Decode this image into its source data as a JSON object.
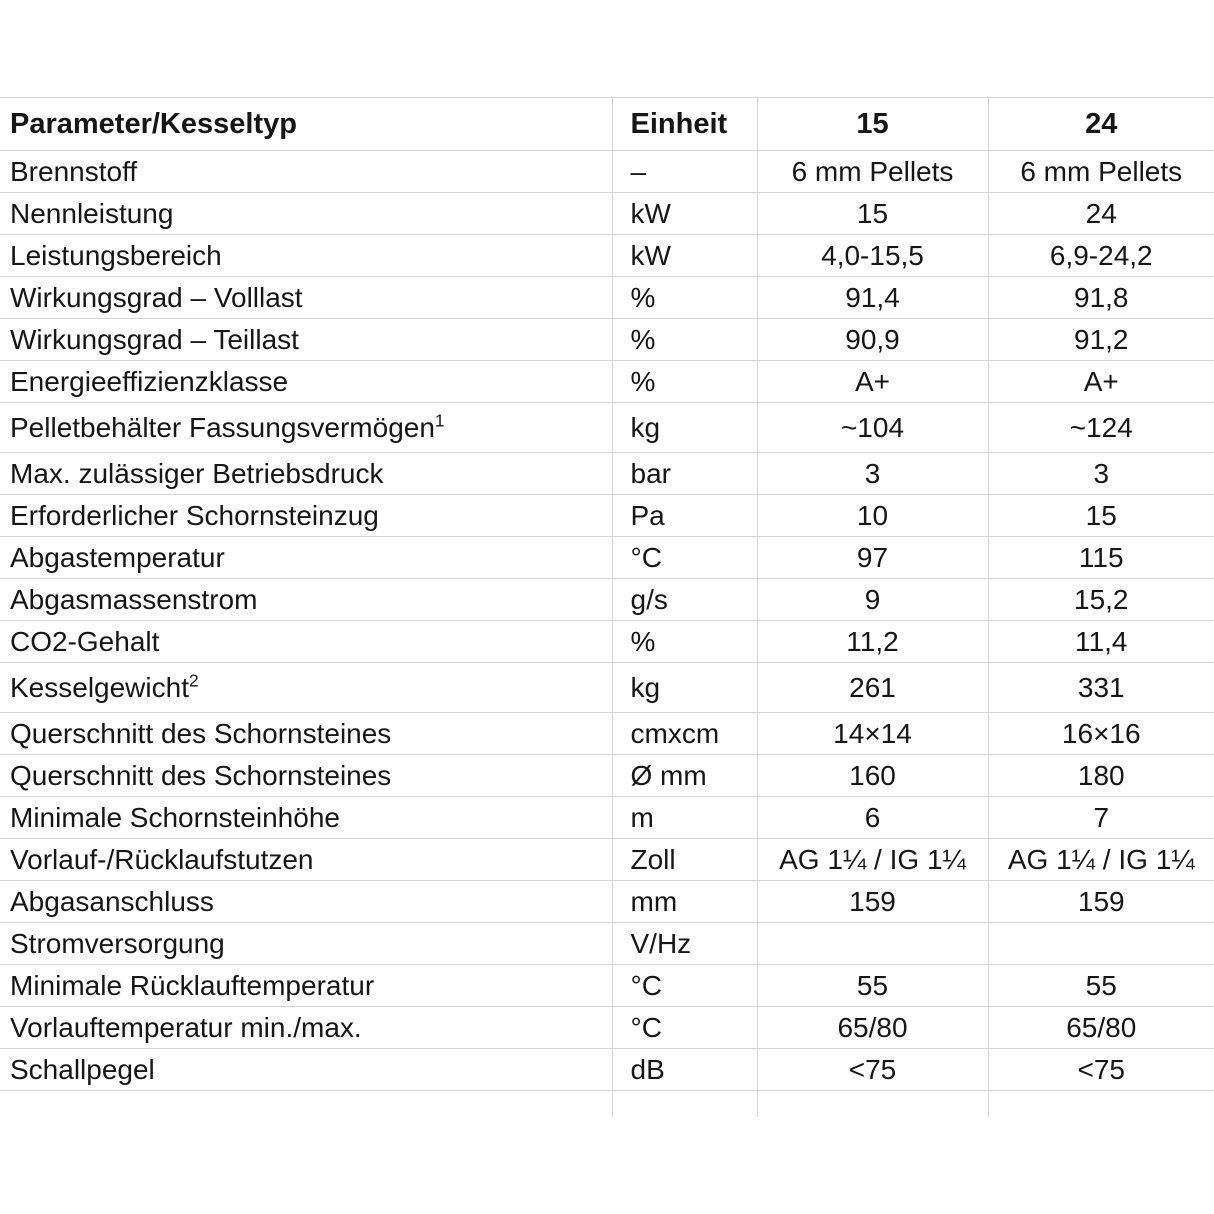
{
  "colors": {
    "background": "#ffffff",
    "grid_line": "#d4d4d4",
    "text": "#161616"
  },
  "table": {
    "header": {
      "parameter": "Parameter/Kesseltyp",
      "unit": "Einheit",
      "model_15": "15",
      "model_24": "24"
    },
    "rows": [
      {
        "parameter": "Brennstoff",
        "footnote": "",
        "unit": "–",
        "model_15": "6 mm Pellets",
        "model_24": "6 mm Pellets"
      },
      {
        "parameter": "Nennleistung",
        "footnote": "",
        "unit": "kW",
        "model_15": "15",
        "model_24": "24"
      },
      {
        "parameter": "Leistungsbereich",
        "footnote": "",
        "unit": "kW",
        "model_15": "4,0-15,5",
        "model_24": "6,9-24,2"
      },
      {
        "parameter": "Wirkungsgrad – Volllast",
        "footnote": "",
        "unit": "%",
        "model_15": "91,4",
        "model_24": "91,8"
      },
      {
        "parameter": "Wirkungsgrad – Teillast",
        "footnote": "",
        "unit": "%",
        "model_15": "90,9",
        "model_24": "91,2"
      },
      {
        "parameter": "Energieeffizienzklasse",
        "footnote": "",
        "unit": "%",
        "model_15": "A+",
        "model_24": "A+"
      },
      {
        "parameter": "Pelletbehälter Fassungsvermögen",
        "footnote": "1",
        "unit": "kg",
        "model_15": "~104",
        "model_24": "~124"
      },
      {
        "parameter": "Max. zulässiger Betriebsdruck",
        "footnote": "",
        "unit": "bar",
        "model_15": "3",
        "model_24": "3"
      },
      {
        "parameter": "Erforderlicher Schornsteinzug",
        "footnote": "",
        "unit": "Pa",
        "model_15": "10",
        "model_24": "15"
      },
      {
        "parameter": "Abgastemperatur",
        "footnote": "",
        "unit": "°C",
        "model_15": "97",
        "model_24": "115"
      },
      {
        "parameter": "Abgasmassenstrom",
        "footnote": "",
        "unit": "g/s",
        "model_15": "9",
        "model_24": "15,2"
      },
      {
        "parameter": "CO2-Gehalt",
        "footnote": "",
        "unit": "%",
        "model_15": "11,2",
        "model_24": "11,4"
      },
      {
        "parameter": "Kesselgewicht",
        "footnote": "2",
        "unit": "kg",
        "model_15": "261",
        "model_24": "331"
      },
      {
        "parameter": "Querschnitt des Schornsteines",
        "footnote": "",
        "unit": "cmxcm",
        "model_15": "14×14",
        "model_24": "16×16"
      },
      {
        "parameter": "Querschnitt des Schornsteines",
        "footnote": "",
        "unit": "Ø mm",
        "model_15": "160",
        "model_24": "180"
      },
      {
        "parameter": "Minimale Schornsteinhöhe",
        "footnote": "",
        "unit": "m",
        "model_15": "6",
        "model_24": "7"
      },
      {
        "parameter": "Vorlauf-/Rücklaufstutzen",
        "footnote": "",
        "unit": "Zoll",
        "model_15": "AG 1¼ / IG 1¼",
        "model_24": "AG 1¼ / IG 1¼"
      },
      {
        "parameter": "Abgasanschluss",
        "footnote": "",
        "unit": "mm",
        "model_15": "159",
        "model_24": "159"
      },
      {
        "parameter": "Stromversorgung",
        "footnote": "",
        "unit": "V/Hz",
        "model_15": "",
        "model_24": ""
      },
      {
        "parameter": "Minimale Rücklauftemperatur",
        "footnote": "",
        "unit": "°C",
        "model_15": "55",
        "model_24": "55"
      },
      {
        "parameter": "Vorlauftemperatur min./max.",
        "footnote": "",
        "unit": "°C",
        "model_15": "65/80",
        "model_24": "65/80"
      },
      {
        "parameter": "Schallpegel",
        "footnote": "",
        "unit": "dB",
        "model_15": "<75",
        "model_24": "<75"
      }
    ]
  }
}
